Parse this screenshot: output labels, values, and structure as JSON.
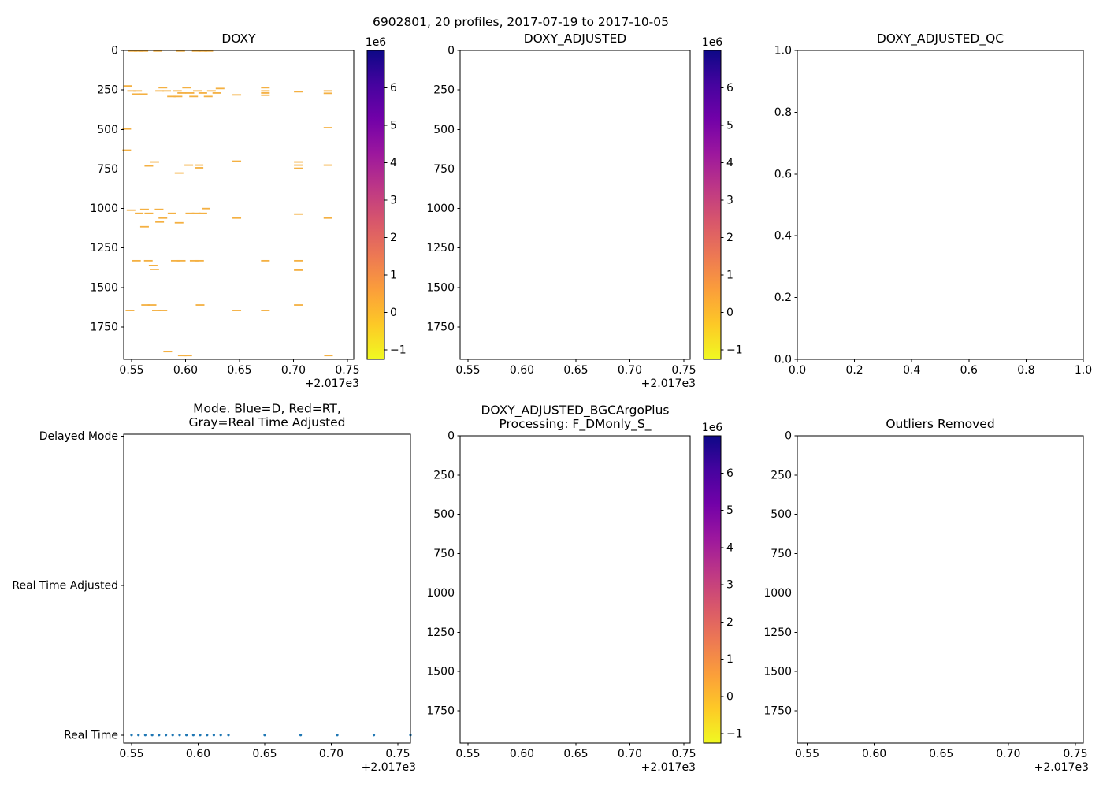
{
  "figure_title": "6902801, 20 profiles, 2017-07-19 to 2017-10-05",
  "colors": {
    "background": "#ffffff",
    "axis": "#000000",
    "dash_marker": "#f4b042",
    "dot_marker": "#1f77b4"
  },
  "colorbar": {
    "offset_label": "1e6",
    "ticks": [
      6,
      5,
      4,
      3,
      2,
      1,
      0,
      -1
    ],
    "tick_labels": [
      "6",
      "5",
      "4",
      "3",
      "2",
      "1",
      "0",
      "−1"
    ],
    "vmax": 7.0,
    "vmin": -1.25,
    "gradient_top_to_bottom": [
      "#0d0887",
      "#46039f",
      "#7201a8",
      "#9c179e",
      "#bd3786",
      "#d8576b",
      "#ed7953",
      "#fb9f3a",
      "#fdca26",
      "#f0f921"
    ]
  },
  "chart_data": [
    {
      "id": "doxy",
      "type": "scatter",
      "title": [
        "DOXY"
      ],
      "marker": "dash",
      "xlim": [
        2017.5427,
        2017.7559
      ],
      "ylim": [
        0,
        1955
      ],
      "xticks": [
        2017.55,
        2017.6,
        2017.65,
        2017.7,
        2017.75
      ],
      "xtick_labels": [
        "0.55",
        "0.60",
        "0.65",
        "0.70",
        "0.75"
      ],
      "x_offset": "+2.017e3",
      "yticks": [
        0,
        250,
        500,
        750,
        1000,
        1250,
        1500,
        1750
      ],
      "ytick_labels": [
        "0",
        "250",
        "500",
        "750",
        "1000",
        "1250",
        "1500",
        "1750"
      ],
      "colorbar": true,
      "points": [
        [
          2017.551,
          4
        ],
        [
          2017.5562,
          4
        ],
        [
          2017.5614,
          4
        ],
        [
          2017.574,
          4
        ],
        [
          2017.5955,
          4
        ],
        [
          2017.61,
          4
        ],
        [
          2017.616,
          4
        ],
        [
          2017.6215,
          4
        ],
        [
          2017.5462,
          225
        ],
        [
          2017.55,
          256
        ],
        [
          2017.5556,
          256
        ],
        [
          2017.554,
          276
        ],
        [
          2017.561,
          276
        ],
        [
          2017.576,
          256
        ],
        [
          2017.5825,
          256
        ],
        [
          2017.579,
          236
        ],
        [
          2017.587,
          291
        ],
        [
          2017.593,
          291
        ],
        [
          2017.5925,
          256
        ],
        [
          2017.5965,
          269
        ],
        [
          2017.601,
          236
        ],
        [
          2017.604,
          269
        ],
        [
          2017.6075,
          291
        ],
        [
          2017.611,
          256
        ],
        [
          2017.616,
          269
        ],
        [
          2017.621,
          291
        ],
        [
          2017.624,
          256
        ],
        [
          2017.629,
          269
        ],
        [
          2017.632,
          241
        ],
        [
          2017.6475,
          281
        ],
        [
          2017.674,
          236
        ],
        [
          2017.674,
          256
        ],
        [
          2017.674,
          269
        ],
        [
          2017.674,
          283
        ],
        [
          2017.7045,
          261
        ],
        [
          2017.732,
          256
        ],
        [
          2017.732,
          271
        ],
        [
          2017.5455,
          497
        ],
        [
          2017.732,
          489
        ],
        [
          2017.5455,
          631
        ],
        [
          2017.5715,
          706
        ],
        [
          2017.566,
          731
        ],
        [
          2017.594,
          776
        ],
        [
          2017.603,
          726
        ],
        [
          2017.6125,
          726
        ],
        [
          2017.6125,
          743
        ],
        [
          2017.6475,
          701
        ],
        [
          2017.7045,
          706
        ],
        [
          2017.7045,
          726
        ],
        [
          2017.7045,
          746
        ],
        [
          2017.732,
          726
        ],
        [
          2017.5495,
          1011
        ],
        [
          2017.557,
          1031
        ],
        [
          2017.562,
          1006
        ],
        [
          2017.566,
          1031
        ],
        [
          2017.5755,
          1006
        ],
        [
          2017.579,
          1061
        ],
        [
          2017.5875,
          1031
        ],
        [
          2017.604,
          1031
        ],
        [
          2017.61,
          1031
        ],
        [
          2017.616,
          1031
        ],
        [
          2017.619,
          1001
        ],
        [
          2017.562,
          1116
        ],
        [
          2017.576,
          1086
        ],
        [
          2017.594,
          1091
        ],
        [
          2017.6475,
          1061
        ],
        [
          2017.7045,
          1036
        ],
        [
          2017.732,
          1061
        ],
        [
          2017.5545,
          1331
        ],
        [
          2017.5655,
          1331
        ],
        [
          2017.57,
          1361
        ],
        [
          2017.5715,
          1386
        ],
        [
          2017.5905,
          1331
        ],
        [
          2017.596,
          1331
        ],
        [
          2017.608,
          1331
        ],
        [
          2017.613,
          1331
        ],
        [
          2017.674,
          1331
        ],
        [
          2017.7045,
          1331
        ],
        [
          2017.7045,
          1391
        ],
        [
          2017.5485,
          1646
        ],
        [
          2017.563,
          1611
        ],
        [
          2017.569,
          1611
        ],
        [
          2017.573,
          1646
        ],
        [
          2017.579,
          1646
        ],
        [
          2017.6135,
          1611
        ],
        [
          2017.6475,
          1646
        ],
        [
          2017.674,
          1646
        ],
        [
          2017.7045,
          1611
        ],
        [
          2017.5835,
          1906
        ],
        [
          2017.597,
          1931
        ],
        [
          2017.602,
          1931
        ],
        [
          2017.7325,
          1931
        ]
      ]
    },
    {
      "id": "doxy_adjusted",
      "type": "scatter",
      "title": [
        "DOXY_ADJUSTED"
      ],
      "marker": "dash",
      "xlim": [
        2017.5427,
        2017.7559
      ],
      "ylim": [
        0,
        1955
      ],
      "xticks": [
        2017.55,
        2017.6,
        2017.65,
        2017.7,
        2017.75
      ],
      "xtick_labels": [
        "0.55",
        "0.60",
        "0.65",
        "0.70",
        "0.75"
      ],
      "x_offset": "+2.017e3",
      "yticks": [
        0,
        250,
        500,
        750,
        1000,
        1250,
        1500,
        1750
      ],
      "ytick_labels": [
        "0",
        "250",
        "500",
        "750",
        "1000",
        "1250",
        "1500",
        "1750"
      ],
      "colorbar": true,
      "points": []
    },
    {
      "id": "qc",
      "type": "scatter",
      "title": [
        "DOXY_ADJUSTED_QC"
      ],
      "marker": "dash",
      "xlim": [
        0.0,
        1.0
      ],
      "ylim": [
        1.0,
        0.0
      ],
      "xticks": [
        0.0,
        0.2,
        0.4,
        0.6,
        0.8,
        1.0
      ],
      "xtick_labels": [
        "0.0",
        "0.2",
        "0.4",
        "0.6",
        "0.8",
        "1.0"
      ],
      "x_offset": "",
      "yticks": [
        1.0,
        0.8,
        0.6,
        0.4,
        0.2,
        0.0
      ],
      "ytick_labels": [
        "1.0",
        "0.8",
        "0.6",
        "0.4",
        "0.2",
        "0.0"
      ],
      "colorbar": false,
      "points": []
    },
    {
      "id": "mode",
      "type": "scatter",
      "title": [
        "Mode. Blue=D, Red=RT,",
        "Gray=Real Time Adjusted"
      ],
      "marker": "dot",
      "xlim": [
        2017.5441,
        2017.7595
      ],
      "xticks": [
        2017.55,
        2017.6,
        2017.65,
        2017.7,
        2017.75
      ],
      "xtick_labels": [
        "0.55",
        "0.60",
        "0.65",
        "0.70",
        "0.75"
      ],
      "x_offset": "+2.017e3",
      "ycategories": [
        "Delayed Mode",
        "Real Time Adjusted",
        "Real Time"
      ],
      "dot_category": "Real Time",
      "dot_x": [
        2017.55,
        2017.5552,
        2017.5603,
        2017.5655,
        2017.5706,
        2017.5758,
        2017.5809,
        2017.5861,
        2017.5912,
        2017.5964,
        2017.6015,
        2017.6067,
        2017.6118,
        2017.617,
        2017.6228,
        2017.65,
        2017.677,
        2017.7045,
        2017.732,
        2017.7595
      ],
      "colorbar": false,
      "points": []
    },
    {
      "id": "bgc",
      "type": "scatter",
      "title": [
        "DOXY_ADJUSTED_BGCArgoPlus",
        "Processing: F_DMonly_S_"
      ],
      "marker": "dash",
      "xlim": [
        2017.5427,
        2017.7559
      ],
      "ylim": [
        0,
        1955
      ],
      "xticks": [
        2017.55,
        2017.6,
        2017.65,
        2017.7,
        2017.75
      ],
      "xtick_labels": [
        "0.55",
        "0.60",
        "0.65",
        "0.70",
        "0.75"
      ],
      "x_offset": "+2.017e3",
      "yticks": [
        0,
        250,
        500,
        750,
        1000,
        1250,
        1500,
        1750
      ],
      "ytick_labels": [
        "0",
        "250",
        "500",
        "750",
        "1000",
        "1250",
        "1500",
        "1750"
      ],
      "colorbar": true,
      "points": []
    },
    {
      "id": "outliers",
      "type": "scatter",
      "title": [
        "Outliers Removed"
      ],
      "marker": "dash",
      "xlim": [
        2017.5427,
        2017.7559
      ],
      "ylim": [
        0,
        1955
      ],
      "xticks": [
        2017.55,
        2017.6,
        2017.65,
        2017.7,
        2017.75
      ],
      "xtick_labels": [
        "0.55",
        "0.60",
        "0.65",
        "0.70",
        "0.75"
      ],
      "x_offset": "+2.017e3",
      "yticks": [
        0,
        250,
        500,
        750,
        1000,
        1250,
        1500,
        1750
      ],
      "ytick_labels": [
        "0",
        "250",
        "500",
        "750",
        "1000",
        "1250",
        "1500",
        "1750"
      ],
      "colorbar": false,
      "points": []
    }
  ]
}
